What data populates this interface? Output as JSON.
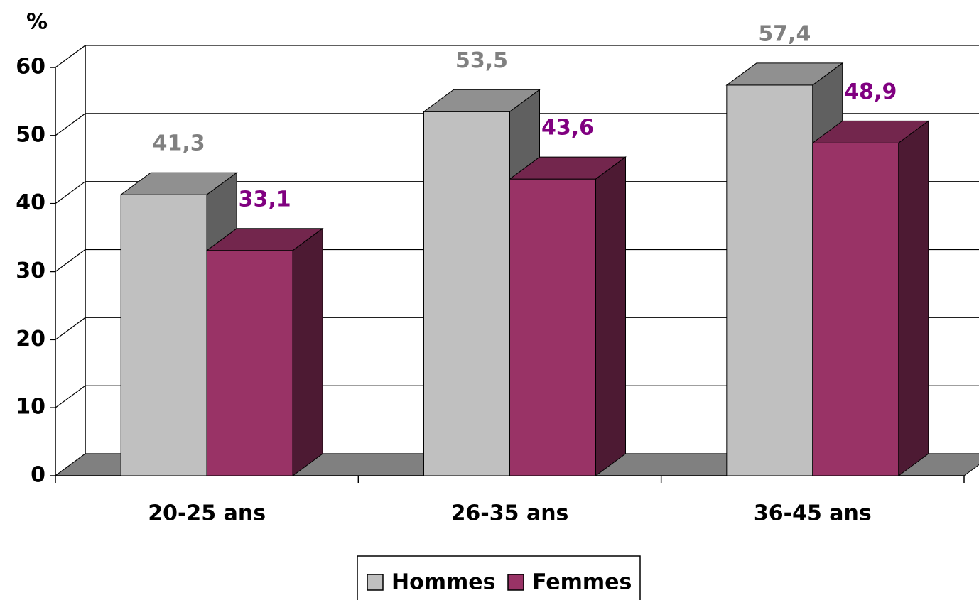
{
  "chart_data": {
    "type": "bar3d",
    "y_label": "%",
    "categories": [
      "20-25 ans",
      "26-35 ans",
      "36-45 ans"
    ],
    "series": [
      {
        "name": "Hommes",
        "color": "#c0c0c0",
        "label_color": "#808080",
        "values": [
          41.3,
          53.5,
          57.4
        ],
        "value_labels": [
          "41,3",
          "53,5",
          "57,4"
        ]
      },
      {
        "name": "Femmes",
        "color": "#993366",
        "label_color": "#800080",
        "values": [
          33.1,
          43.6,
          48.9
        ],
        "value_labels": [
          "33,1",
          "43,6",
          "48,9"
        ]
      }
    ],
    "ylim": [
      0,
      60
    ],
    "yticks": [
      0,
      10,
      20,
      30,
      40,
      50,
      60
    ],
    "grid": true,
    "legend": "bottom"
  }
}
